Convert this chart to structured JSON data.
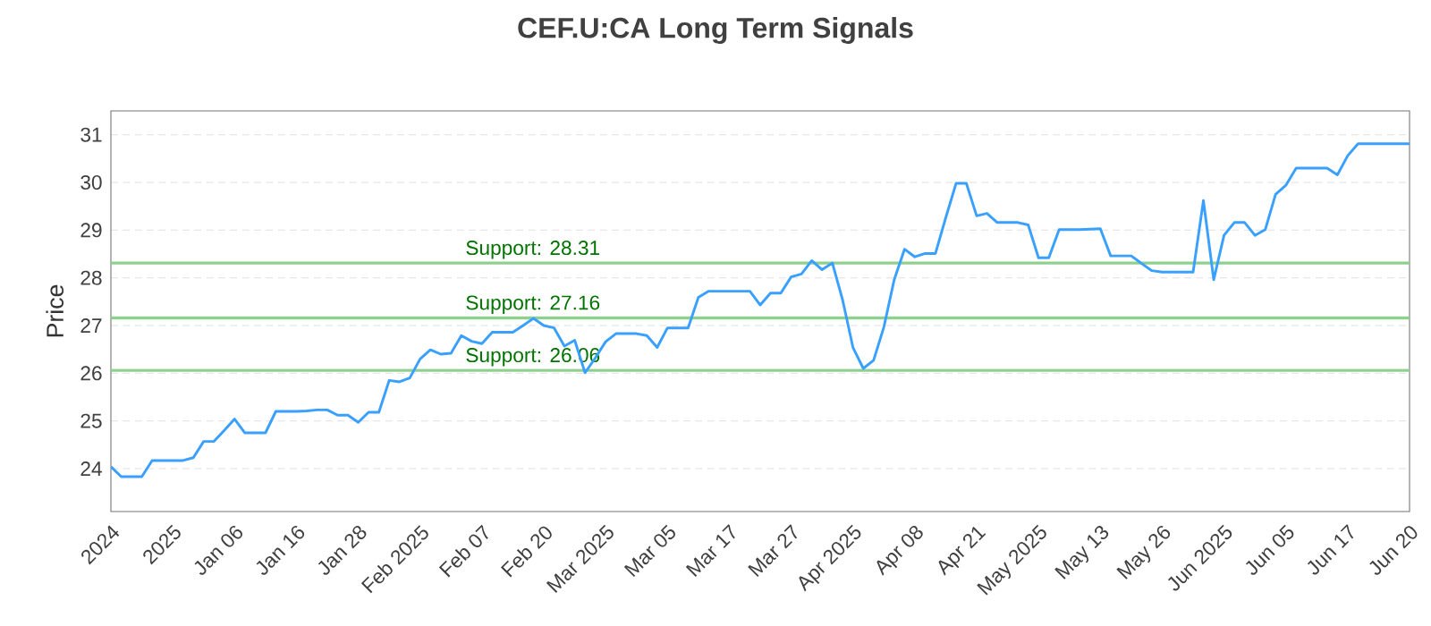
{
  "chart_data": {
    "type": "line",
    "title": "CEF.U:CA Long Term Signals",
    "ylabel": "Price",
    "categories": [
      "2024",
      null,
      null,
      null,
      null,
      null,
      "2025",
      null,
      null,
      null,
      null,
      null,
      "Jan 06",
      null,
      null,
      null,
      null,
      null,
      "Jan 16",
      null,
      null,
      null,
      null,
      null,
      "Jan 28",
      null,
      null,
      null,
      null,
      null,
      "Feb 2025",
      null,
      null,
      null,
      null,
      null,
      "Feb 07",
      null,
      null,
      null,
      null,
      null,
      "Feb 20",
      null,
      null,
      null,
      null,
      null,
      "Mar 2025",
      null,
      null,
      null,
      null,
      null,
      "Mar 05",
      null,
      null,
      null,
      null,
      null,
      "Mar 17",
      null,
      null,
      null,
      null,
      null,
      "Mar 27",
      null,
      null,
      null,
      null,
      null,
      "Apr 2025",
      null,
      null,
      null,
      null,
      null,
      "Apr 08",
      null,
      null,
      null,
      null,
      null,
      "Apr 21",
      null,
      null,
      null,
      null,
      null,
      "May 2025",
      null,
      null,
      null,
      null,
      null,
      "May 13",
      null,
      null,
      null,
      null,
      null,
      "May 26",
      null,
      null,
      null,
      null,
      null,
      "Jun 2025",
      null,
      null,
      null,
      null,
      null,
      "Jun 05",
      null,
      null,
      null,
      null,
      null,
      "Jun 17",
      null,
      null,
      null,
      null,
      null,
      "Jun 20"
    ],
    "values": [
      24.04,
      23.83,
      23.83,
      23.83,
      24.17,
      24.17,
      24.17,
      24.17,
      24.23,
      24.57,
      24.57,
      24.8,
      25.04,
      24.75,
      24.75,
      24.75,
      25.2,
      25.2,
      25.2,
      25.21,
      25.23,
      25.23,
      25.12,
      25.12,
      24.97,
      25.18,
      25.18,
      25.85,
      25.82,
      25.9,
      26.3,
      26.49,
      26.4,
      26.42,
      26.79,
      26.67,
      26.62,
      26.86,
      26.86,
      26.86,
      27.0,
      27.15,
      27.0,
      26.95,
      26.57,
      26.69,
      26.01,
      26.32,
      26.66,
      26.83,
      26.83,
      26.83,
      26.79,
      26.54,
      26.95,
      26.95,
      26.95,
      27.59,
      27.72,
      27.72,
      27.72,
      27.72,
      27.72,
      27.43,
      27.68,
      27.68,
      28.02,
      28.08,
      28.36,
      28.17,
      28.31,
      27.53,
      26.54,
      26.1,
      26.27,
      26.97,
      27.96,
      28.6,
      28.44,
      28.51,
      28.51,
      29.26,
      29.98,
      29.98,
      29.3,
      29.35,
      29.16,
      29.16,
      29.16,
      29.11,
      28.42,
      28.42,
      29.01,
      29.01,
      29.01,
      29.02,
      29.03,
      28.46,
      28.46,
      28.46,
      28.3,
      28.15,
      28.12,
      28.12,
      28.12,
      28.12,
      29.62,
      27.96,
      28.89,
      29.16,
      29.16,
      28.89,
      29.01,
      29.75,
      29.94,
      30.3,
      30.3,
      30.3,
      30.3,
      30.16,
      30.56,
      30.81,
      30.81,
      30.81,
      30.81,
      30.81,
      30.81
    ],
    "color": "#3aa0ff",
    "ylim": [
      23.1,
      31.5
    ],
    "yticks": [
      24,
      25,
      26,
      27,
      28,
      29,
      30,
      31
    ],
    "grid": "y",
    "ref_lines": [
      {
        "axis": "y",
        "value": 28.31,
        "label": "Support: 28.31",
        "color": "#8fd08f"
      },
      {
        "axis": "y",
        "value": 27.16,
        "label": "Support: 27.16",
        "color": "#8fd08f"
      },
      {
        "axis": "y",
        "value": 26.06,
        "label": "Support: 26.06",
        "color": "#8fd08f"
      }
    ]
  }
}
